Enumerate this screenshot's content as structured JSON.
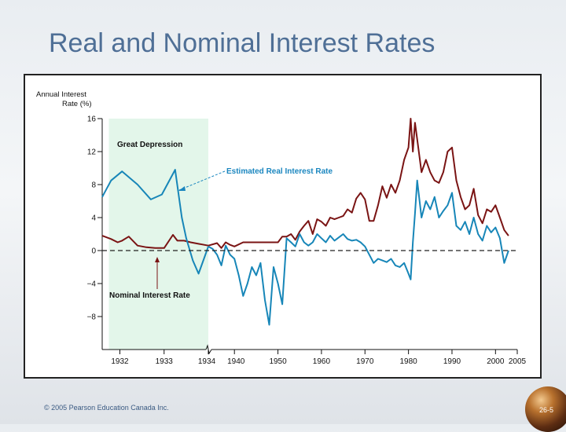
{
  "slide": {
    "title": "Real and Nominal Interest Rates",
    "copyright": "© 2005 Pearson Education Canada Inc.",
    "slide_number": "26-5"
  },
  "colors": {
    "nominal": "#7a1414",
    "real": "#1786b8",
    "shade": "#e3f6ea",
    "axis": "#111111",
    "label_blue": "#1a86bf"
  },
  "chart_data": {
    "type": "line",
    "title": "",
    "ylabel_lines": [
      "Annual Interest",
      "Rate (%)"
    ],
    "ylim": [
      -12,
      16
    ],
    "yticks": [
      16,
      12,
      8,
      4,
      0,
      -4,
      -8
    ],
    "ytick_labels": [
      "16",
      "12",
      "8",
      "4",
      "0",
      "−4",
      "−8"
    ],
    "broken_axis": true,
    "xticks_left": [
      1932,
      1933,
      1934
    ],
    "xticks_right": [
      1940,
      1950,
      1960,
      1970,
      1980,
      1990,
      2000,
      2005
    ],
    "xtick_labels_left": [
      "1932",
      "1933",
      "1934"
    ],
    "xtick_labels_right": [
      "1940",
      "1950",
      "1960",
      "1970",
      "1980",
      "1990",
      "2000",
      "2005"
    ],
    "left_segment_range": [
      1931.6,
      1934.0
    ],
    "right_segment_range": [
      1934.0,
      2005.0
    ],
    "shaded_region": {
      "from": 1931.75,
      "to": 1934.0,
      "label": "Great Depression"
    },
    "annotations": {
      "real_label": "Estimated Real Interest Rate",
      "nominal_label": "Nominal Interest Rate"
    },
    "series": [
      {
        "name": "Nominal Interest Rate",
        "segment_left": [
          [
            1931.6,
            1.8
          ],
          [
            1931.8,
            1.4
          ],
          [
            1931.95,
            1.0
          ],
          [
            1932.05,
            1.2
          ],
          [
            1932.2,
            1.7
          ],
          [
            1932.4,
            0.6
          ],
          [
            1932.6,
            0.4
          ],
          [
            1932.8,
            0.3
          ],
          [
            1933.0,
            0.3
          ],
          [
            1933.2,
            1.9
          ],
          [
            1933.3,
            1.2
          ],
          [
            1933.45,
            1.2
          ],
          [
            1933.6,
            1.0
          ],
          [
            1933.8,
            0.8
          ],
          [
            1934.0,
            0.6
          ]
        ],
        "segment_right": [
          [
            1934,
            0.6
          ],
          [
            1936,
            0.9
          ],
          [
            1937,
            0.3
          ],
          [
            1938,
            1.0
          ],
          [
            1939,
            0.7
          ],
          [
            1940,
            0.5
          ],
          [
            1942,
            1.0
          ],
          [
            1946,
            1.0
          ],
          [
            1950,
            1.0
          ],
          [
            1951,
            1.7
          ],
          [
            1952,
            1.7
          ],
          [
            1953,
            2.0
          ],
          [
            1954,
            1.3
          ],
          [
            1955,
            2.3
          ],
          [
            1956,
            3.0
          ],
          [
            1957,
            3.6
          ],
          [
            1958,
            2.0
          ],
          [
            1959,
            3.8
          ],
          [
            1960,
            3.5
          ],
          [
            1961,
            3.0
          ],
          [
            1962,
            4.0
          ],
          [
            1963,
            3.8
          ],
          [
            1964,
            4.0
          ],
          [
            1965,
            4.2
          ],
          [
            1966,
            5.0
          ],
          [
            1967,
            4.6
          ],
          [
            1968,
            6.3
          ],
          [
            1969,
            7.0
          ],
          [
            1970,
            6.2
          ],
          [
            1971,
            3.6
          ],
          [
            1972,
            3.6
          ],
          [
            1973,
            5.5
          ],
          [
            1974,
            7.8
          ],
          [
            1975,
            6.4
          ],
          [
            1976,
            8.0
          ],
          [
            1977,
            7.0
          ],
          [
            1978,
            8.5
          ],
          [
            1979,
            11.0
          ],
          [
            1980,
            12.5
          ],
          [
            1980.5,
            16.0
          ],
          [
            1981,
            12.0
          ],
          [
            1981.5,
            15.5
          ],
          [
            1982,
            13.5
          ],
          [
            1983,
            9.5
          ],
          [
            1984,
            11.0
          ],
          [
            1985,
            9.5
          ],
          [
            1986,
            8.5
          ],
          [
            1987,
            8.2
          ],
          [
            1988,
            9.5
          ],
          [
            1989,
            12.0
          ],
          [
            1990,
            12.5
          ],
          [
            1991,
            8.5
          ],
          [
            1992,
            6.5
          ],
          [
            1993,
            5.0
          ],
          [
            1994,
            5.5
          ],
          [
            1995,
            7.5
          ],
          [
            1996,
            4.3
          ],
          [
            1997,
            3.3
          ],
          [
            1998,
            5.0
          ],
          [
            1999,
            4.7
          ],
          [
            2000,
            5.5
          ],
          [
            2001,
            4.0
          ],
          [
            2002,
            2.5
          ],
          [
            2003,
            1.8
          ]
        ]
      },
      {
        "name": "Estimated Real Interest Rate",
        "segment_left": [
          [
            1931.6,
            6.5
          ],
          [
            1931.8,
            8.5
          ],
          [
            1932.05,
            9.6
          ],
          [
            1932.4,
            8.0
          ],
          [
            1932.7,
            6.2
          ],
          [
            1932.95,
            6.8
          ],
          [
            1933.25,
            9.8
          ],
          [
            1933.4,
            4.0
          ],
          [
            1933.5,
            1.5
          ],
          [
            1933.65,
            -1.2
          ],
          [
            1933.78,
            -2.8
          ],
          [
            1933.9,
            -1.0
          ],
          [
            1934.0,
            0.5
          ]
        ],
        "segment_right": [
          [
            1934,
            0.5
          ],
          [
            1935,
            0.2
          ],
          [
            1936,
            -0.5
          ],
          [
            1937,
            -1.8
          ],
          [
            1938,
            0.6
          ],
          [
            1939,
            -0.5
          ],
          [
            1940,
            -1.0
          ],
          [
            1941,
            -3.0
          ],
          [
            1942,
            -5.5
          ],
          [
            1943,
            -4.0
          ],
          [
            1944,
            -2.0
          ],
          [
            1945,
            -3.0
          ],
          [
            1946,
            -1.5
          ],
          [
            1947,
            -6.0
          ],
          [
            1948,
            -9.0
          ],
          [
            1949,
            -2.0
          ],
          [
            1950,
            -4.0
          ],
          [
            1951,
            -6.5
          ],
          [
            1952,
            1.5
          ],
          [
            1953,
            1.0
          ],
          [
            1954,
            0.5
          ],
          [
            1955,
            2.0
          ],
          [
            1956,
            1.0
          ],
          [
            1957,
            0.6
          ],
          [
            1958,
            1.0
          ],
          [
            1959,
            2.0
          ],
          [
            1960,
            1.5
          ],
          [
            1961,
            1.0
          ],
          [
            1962,
            1.8
          ],
          [
            1963,
            1.2
          ],
          [
            1964,
            1.6
          ],
          [
            1965,
            2.0
          ],
          [
            1966,
            1.4
          ],
          [
            1967,
            1.2
          ],
          [
            1968,
            1.3
          ],
          [
            1969,
            1.0
          ],
          [
            1970,
            0.5
          ],
          [
            1971,
            -0.5
          ],
          [
            1972,
            -1.5
          ],
          [
            1973,
            -1.0
          ],
          [
            1974,
            -1.2
          ],
          [
            1975,
            -1.4
          ],
          [
            1976,
            -1.0
          ],
          [
            1977,
            -1.8
          ],
          [
            1978,
            -2.0
          ],
          [
            1979,
            -1.5
          ],
          [
            1980,
            -2.8
          ],
          [
            1980.5,
            -3.5
          ],
          [
            1981,
            1.0
          ],
          [
            1981.5,
            4.5
          ],
          [
            1982,
            8.5
          ],
          [
            1983,
            4.0
          ],
          [
            1984,
            6.0
          ],
          [
            1985,
            5.0
          ],
          [
            1986,
            6.5
          ],
          [
            1987,
            4.0
          ],
          [
            1988,
            4.8
          ],
          [
            1989,
            5.5
          ],
          [
            1990,
            7.0
          ],
          [
            1991,
            3.0
          ],
          [
            1992,
            2.5
          ],
          [
            1993,
            3.5
          ],
          [
            1994,
            2.0
          ],
          [
            1995,
            4.0
          ],
          [
            1996,
            2.0
          ],
          [
            1997,
            1.2
          ],
          [
            1998,
            3.0
          ],
          [
            1999,
            2.2
          ],
          [
            2000,
            2.8
          ],
          [
            2001,
            1.5
          ],
          [
            2002,
            -1.5
          ],
          [
            2003,
            0.0
          ]
        ]
      }
    ]
  }
}
